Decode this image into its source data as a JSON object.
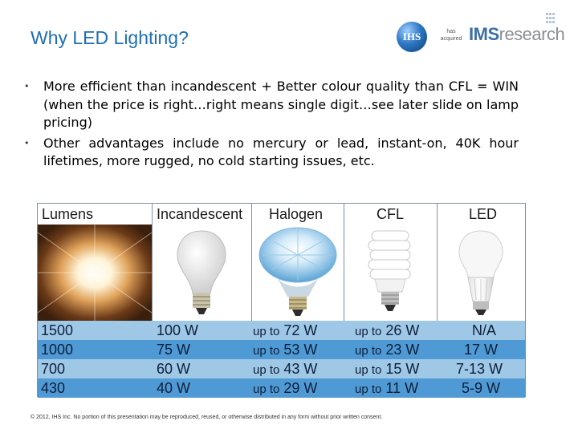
{
  "slide": {
    "title": "Why LED Lighting?",
    "bullets": [
      "More efficient than incandescent + Better colour quality than CFL = WIN (when the price is right…right means single digit…see later slide on lamp pricing)",
      "Other advantages include no mercury or lead, instant-on, 40K hour lifetimes, more rugged, no cold starting issues, etc."
    ],
    "footer": "© 2012, IHS Inc. No portion of this presentation may be reproduced, reused, or otherwise distributed in any form without prior written consent."
  },
  "logos": {
    "ihs": "IHS",
    "has_acquired": "has acquired",
    "ims": "IMS",
    "research": "research"
  },
  "table": {
    "headers": [
      "Lumens",
      "Incandescent",
      "Halogen",
      "CFL",
      "LED"
    ],
    "rows": [
      {
        "lumens": "1500",
        "incandescent": "100 W",
        "halogen_prefix": "up to",
        "halogen": "72 W",
        "cfl_prefix": "up to",
        "cfl": "26 W",
        "led": "N/A"
      },
      {
        "lumens": "1000",
        "incandescent": "75 W",
        "halogen_prefix": "up to",
        "halogen": "53 W",
        "cfl_prefix": "up to",
        "cfl": "23 W",
        "led": "17 W"
      },
      {
        "lumens": "700",
        "incandescent": "60 W",
        "halogen_prefix": "up to",
        "halogen": "43 W",
        "cfl_prefix": "up to",
        "cfl": "15 W",
        "led": "7-13 W"
      },
      {
        "lumens": "430",
        "incandescent": "40 W",
        "halogen_prefix": "up to",
        "halogen": "29 W",
        "cfl_prefix": "up to",
        "cfl": "11 W",
        "led": "5-9 W"
      }
    ]
  },
  "colors": {
    "title": "#1f6fb2",
    "row_light": "#9fc8e6",
    "row_dark": "#4f9ad4"
  }
}
